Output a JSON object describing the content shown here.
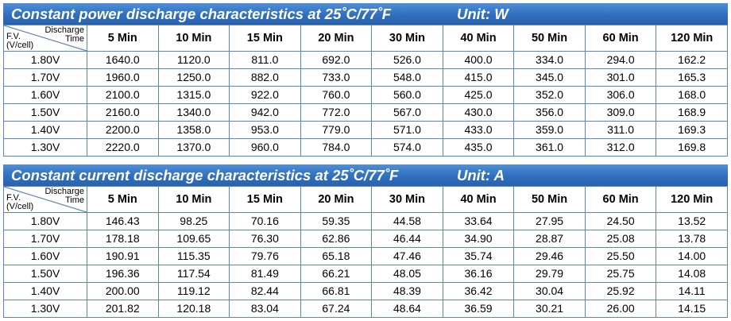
{
  "power": {
    "title": "Constant power discharge characteristics at 25˚C/77˚F",
    "unit": "Unit: W",
    "corner": {
      "top_line1": "Discharge",
      "top_line2": "Time",
      "bottom_line1": "F.V.",
      "bottom_line2": "(V/cell)"
    },
    "headers": [
      "5 Min",
      "10 Min",
      "15 Min",
      "20 Min",
      "30 Min",
      "40 Min",
      "50 Min",
      "60 Min",
      "120 Min"
    ],
    "rows": [
      {
        "label": "1.80V",
        "values": [
          "1640.0",
          "1120.0",
          "811.0",
          "692.0",
          "526.0",
          "400.0",
          "334.0",
          "294.0",
          "162.2"
        ]
      },
      {
        "label": "1.70V",
        "values": [
          "1960.0",
          "1250.0",
          "882.0",
          "733.0",
          "548.0",
          "415.0",
          "345.0",
          "301.0",
          "165.3"
        ]
      },
      {
        "label": "1.60V",
        "values": [
          "2100.0",
          "1315.0",
          "922.0",
          "760.0",
          "560.0",
          "425.0",
          "352.0",
          "306.0",
          "168.0"
        ]
      },
      {
        "label": "1.50V",
        "values": [
          "2160.0",
          "1340.0",
          "942.0",
          "772.0",
          "567.0",
          "430.0",
          "356.0",
          "309.0",
          "168.9"
        ]
      },
      {
        "label": "1.40V",
        "values": [
          "2200.0",
          "1358.0",
          "953.0",
          "779.0",
          "571.0",
          "433.0",
          "359.0",
          "311.0",
          "169.3"
        ]
      },
      {
        "label": "1.30V",
        "values": [
          "2220.0",
          "1370.0",
          "960.0",
          "784.0",
          "574.0",
          "435.0",
          "361.0",
          "312.0",
          "169.8"
        ]
      }
    ]
  },
  "current": {
    "title": "Constant current discharge characteristics at 25˚C/77˚F",
    "unit": "Unit: A",
    "corner": {
      "top_line1": "Discharge",
      "top_line2": "Time",
      "bottom_line1": "F.V.",
      "bottom_line2": "(V/cell)"
    },
    "headers": [
      "5 Min",
      "10 Min",
      "15 Min",
      "20 Min",
      "30 Min",
      "40 Min",
      "50 Min",
      "60 Min",
      "120 Min"
    ],
    "rows": [
      {
        "label": "1.80V",
        "values": [
          "146.43",
          "98.25",
          "70.16",
          "59.35",
          "44.58",
          "33.64",
          "27.95",
          "24.50",
          "13.52"
        ]
      },
      {
        "label": "1.70V",
        "values": [
          "178.18",
          "109.65",
          "76.30",
          "62.86",
          "46.44",
          "34.90",
          "28.87",
          "25.08",
          "13.78"
        ]
      },
      {
        "label": "1.60V",
        "values": [
          "190.91",
          "115.35",
          "79.76",
          "65.18",
          "47.46",
          "35.74",
          "29.46",
          "25.50",
          "14.00"
        ]
      },
      {
        "label": "1.50V",
        "values": [
          "196.36",
          "117.54",
          "81.49",
          "66.21",
          "48.05",
          "36.16",
          "29.79",
          "25.75",
          "14.08"
        ]
      },
      {
        "label": "1.40V",
        "values": [
          "200.00",
          "119.12",
          "82.44",
          "66.81",
          "48.39",
          "36.42",
          "30.04",
          "25.92",
          "14.11"
        ]
      },
      {
        "label": "1.30V",
        "values": [
          "201.82",
          "120.18",
          "83.04",
          "67.24",
          "48.64",
          "36.59",
          "30.21",
          "26.00",
          "14.15"
        ]
      }
    ]
  }
}
